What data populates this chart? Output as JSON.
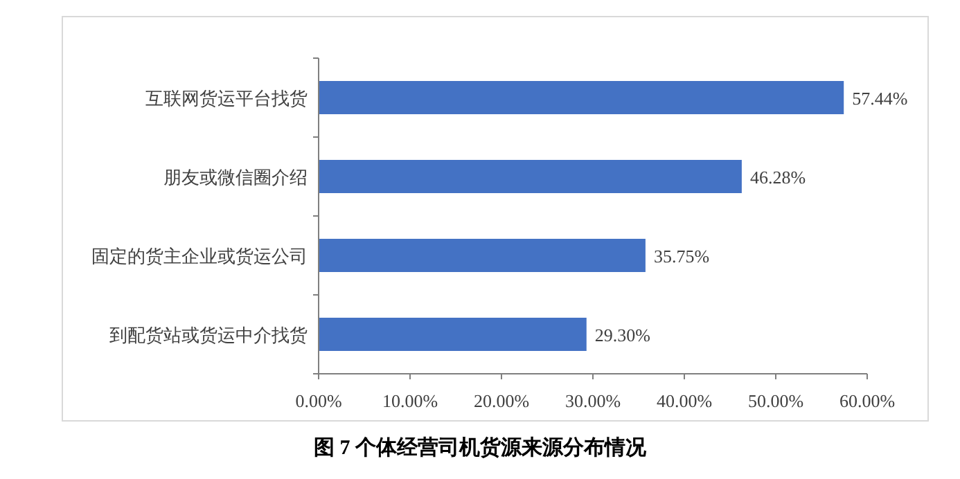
{
  "chart_data": {
    "type": "bar",
    "orientation": "horizontal",
    "title": "图 7 个体经营司机货源来源分布情况",
    "categories": [
      "互联网货运平台找货",
      "朋友或微信圈介绍",
      "固定的货主企业或货运公司",
      "到配货站或货运中介找货"
    ],
    "values": [
      57.44,
      46.28,
      35.75,
      29.3
    ],
    "value_labels": [
      "57.44%",
      "46.28%",
      "35.75%",
      "29.30%"
    ],
    "color": "#4472c4",
    "xlim": [
      0,
      60
    ],
    "xticks": [
      {
        "value": 0,
        "label": "0.00%"
      },
      {
        "value": 10,
        "label": "10.00%"
      },
      {
        "value": 20,
        "label": "20.00%"
      },
      {
        "value": 30,
        "label": "30.00%"
      },
      {
        "value": 40,
        "label": "40.00%"
      },
      {
        "value": 50,
        "label": "50.00%"
      },
      {
        "value": 60,
        "label": "60.00%"
      }
    ],
    "grid": false
  }
}
